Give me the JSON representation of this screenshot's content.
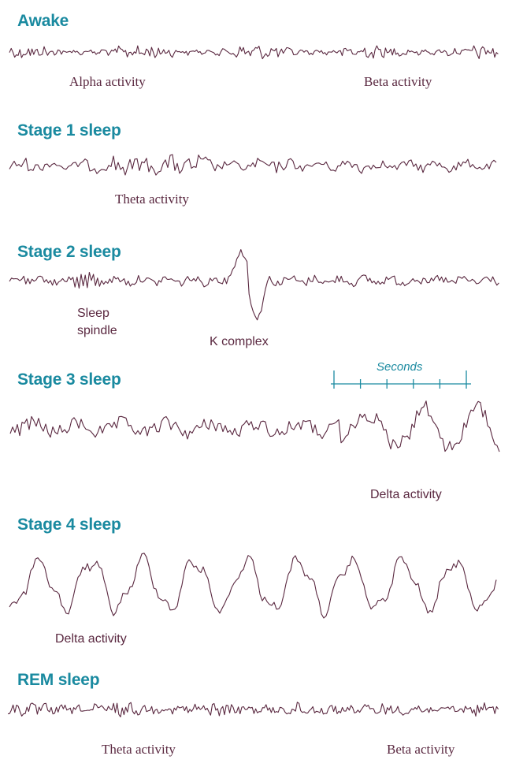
{
  "colors": {
    "title": "#1a8aa0",
    "trace": "#5a2840",
    "scale": "#1a8aa0"
  },
  "stages": [
    {
      "title": "Awake",
      "labels": [
        "Alpha activity",
        "Beta activity"
      ]
    },
    {
      "title": "Stage 1 sleep",
      "labels": [
        "Theta activity"
      ]
    },
    {
      "title": "Stage 2 sleep",
      "labels": [
        "Sleep",
        "spindle",
        "K complex"
      ]
    },
    {
      "title": "Stage 3 sleep",
      "labels": [
        "Delta activity"
      ]
    },
    {
      "title": "Stage 4 sleep",
      "labels": [
        "Delta activity"
      ]
    },
    {
      "title": "REM sleep",
      "labels": [
        "Theta activity",
        "Beta activity"
      ]
    }
  ],
  "scale": {
    "label": "Seconds",
    "ticks": 6
  }
}
